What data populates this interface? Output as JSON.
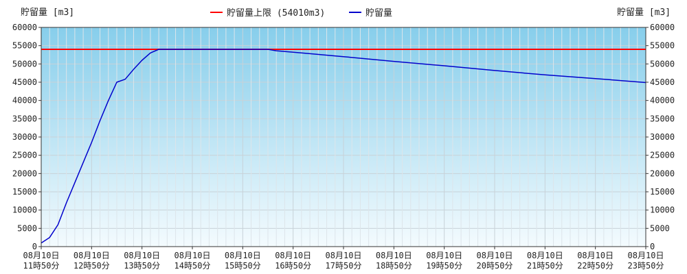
{
  "chart_data": {
    "type": "line",
    "title": "",
    "ylabel_left": "貯留量 [m3]",
    "ylabel_right": "貯留量 [m3]",
    "ylim": [
      0,
      60000
    ],
    "y_ticks": [
      0,
      5000,
      10000,
      15000,
      20000,
      25000,
      30000,
      35000,
      40000,
      45000,
      50000,
      55000,
      60000
    ],
    "x_range": [
      "08月10日 11時50分",
      "08月10日 23時50分"
    ],
    "x_ticks": [
      {
        "date": "08月10日",
        "time": "11時50分"
      },
      {
        "date": "08月10日",
        "time": "12時50分"
      },
      {
        "date": "08月10日",
        "time": "13時50分"
      },
      {
        "date": "08月10日",
        "time": "14時50分"
      },
      {
        "date": "08月10日",
        "time": "15時50分"
      },
      {
        "date": "08月10日",
        "time": "16時50分"
      },
      {
        "date": "08月10日",
        "time": "17時50分"
      },
      {
        "date": "08月10日",
        "time": "18時50分"
      },
      {
        "date": "08月10日",
        "time": "19時50分"
      },
      {
        "date": "08月10日",
        "time": "20時50分"
      },
      {
        "date": "08月10日",
        "time": "21時50分"
      },
      {
        "date": "08月10日",
        "time": "22時50分"
      },
      {
        "date": "08月10日",
        "time": "23時50分"
      }
    ],
    "grid": true,
    "legend_position": "top-center",
    "series": [
      {
        "name": "貯留量上限 (54010m3)",
        "color": "#ff0000",
        "kind": "constant",
        "value": 54010
      },
      {
        "name": "貯留量",
        "color": "#0000cc",
        "x": [
          "11:50",
          "12:00",
          "12:10",
          "12:20",
          "12:30",
          "12:40",
          "12:50",
          "13:00",
          "13:10",
          "13:20",
          "13:30",
          "13:40",
          "13:50",
          "14:00",
          "14:10",
          "14:20",
          "14:40",
          "14:50",
          "15:00",
          "15:30",
          "16:00",
          "16:20",
          "16:30",
          "17:00",
          "17:50",
          "18:50",
          "19:50",
          "20:50",
          "21:50",
          "22:50",
          "23:50"
        ],
        "y": [
          1000,
          2500,
          6000,
          12000,
          17500,
          23000,
          28500,
          34500,
          40000,
          45000,
          45800,
          48500,
          51000,
          53000,
          54000,
          54000,
          54000,
          54000,
          54000,
          54000,
          54000,
          54000,
          53600,
          53000,
          52000,
          50700,
          49500,
          48200,
          47000,
          46000,
          44900
        ]
      }
    ],
    "bg_gradient": [
      "#87ceeb",
      "#f4fbfe"
    ]
  }
}
